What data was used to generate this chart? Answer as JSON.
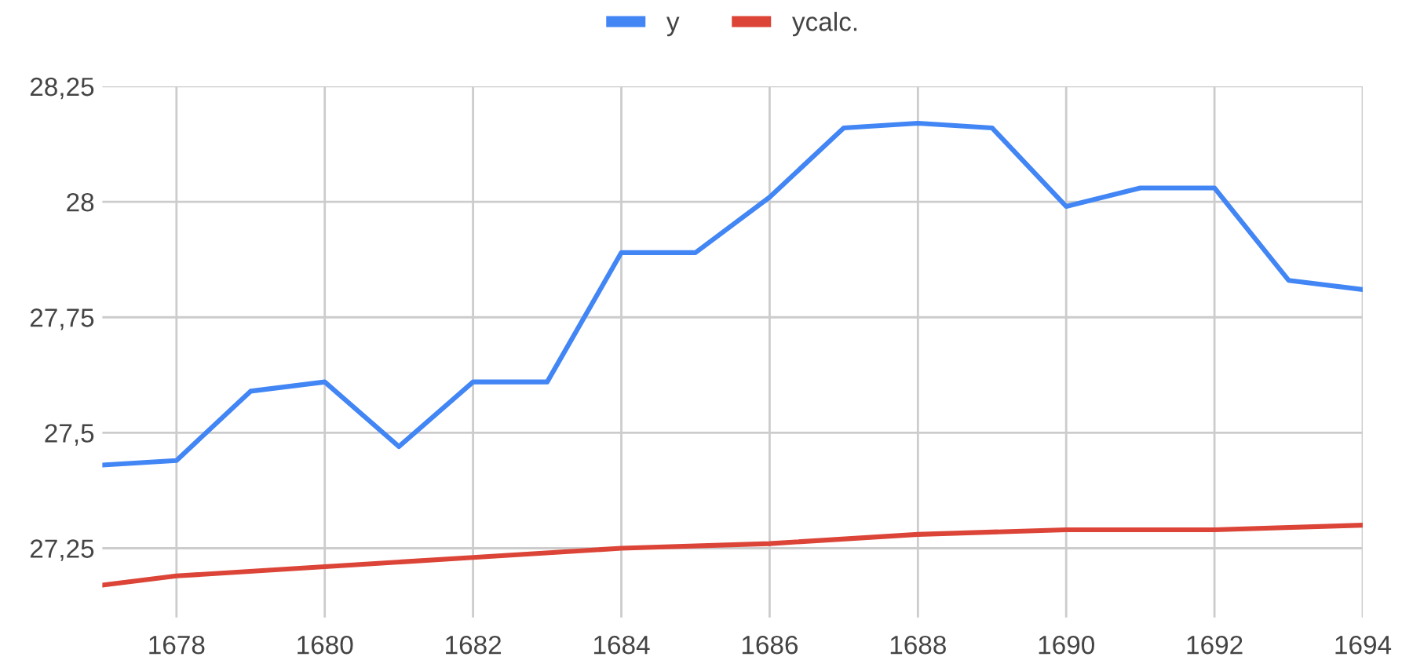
{
  "chart_data": {
    "type": "line",
    "x": [
      1677,
      1678,
      1679,
      1680,
      1681,
      1682,
      1683,
      1684,
      1685,
      1686,
      1687,
      1688,
      1689,
      1690,
      1691,
      1692,
      1693,
      1694
    ],
    "series": [
      {
        "name": "y",
        "color": "#4285f4",
        "values": [
          27.43,
          27.44,
          27.59,
          27.61,
          27.47,
          27.61,
          27.61,
          27.89,
          27.89,
          28.01,
          28.16,
          28.17,
          28.16,
          27.99,
          28.03,
          28.03,
          27.83,
          27.81
        ]
      },
      {
        "name": "ycalc.",
        "color": "#db4437",
        "x": [
          1677,
          1678,
          1680,
          1682,
          1684,
          1686,
          1688,
          1690,
          1692,
          1694
        ],
        "values": [
          27.17,
          27.19,
          27.21,
          27.23,
          27.25,
          27.26,
          27.28,
          27.29,
          27.29,
          27.3
        ]
      }
    ],
    "xlim": [
      1677,
      1694
    ],
    "xticks": [
      1678,
      1680,
      1682,
      1684,
      1686,
      1688,
      1690,
      1692,
      1694
    ],
    "ylim": [
      27.1,
      28.25
    ],
    "yticks": [
      {
        "value": 27.25,
        "label": "27,25"
      },
      {
        "value": 27.5,
        "label": "27,5"
      },
      {
        "value": 27.75,
        "label": "27,75"
      },
      28,
      {
        "value": 28.25,
        "label": "28,25"
      }
    ],
    "grid": true,
    "legend": "top",
    "marker": "none",
    "line_style": "solid"
  }
}
